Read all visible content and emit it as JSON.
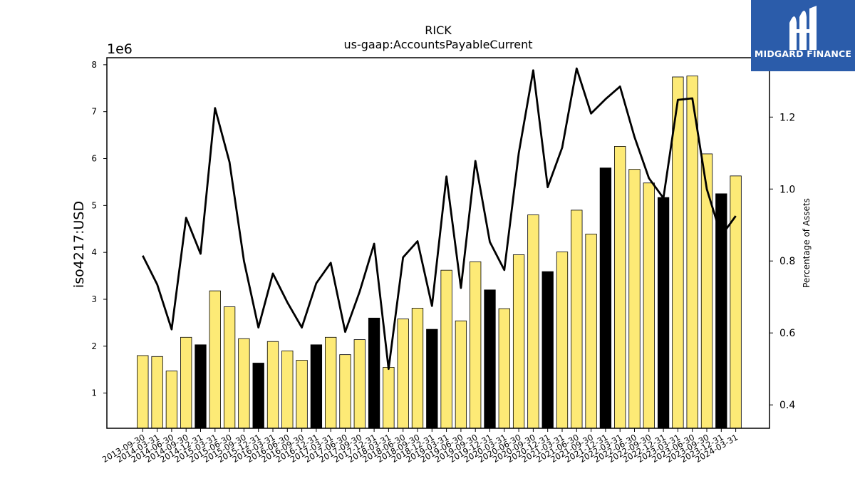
{
  "chart_data": {
    "type": "bar",
    "title": "RICK",
    "subtitle": "us-gaap:AccountsPayableCurrent",
    "ylabel": "iso4217:USD",
    "y_scale_label": "1e6",
    "y2label": "Percentage of Assets",
    "ylim": [
      0.25,
      8.15
    ],
    "y2lim": [
      0.335,
      1.365
    ],
    "yticks": [
      "1",
      "2",
      "3",
      "4",
      "5",
      "6",
      "7",
      "8"
    ],
    "y2ticks": [
      "0.4",
      "0.6",
      "0.8",
      "1.0",
      "1.2"
    ],
    "categories": [
      "2013-09-30",
      "2014-03-31",
      "2014-06-30",
      "2014-09-30",
      "2014-12-31",
      "2015-03-31",
      "2015-06-30",
      "2015-09-30",
      "2015-12-31",
      "2016-03-31",
      "2016-06-30",
      "2016-09-30",
      "2016-12-31",
      "2017-03-31",
      "2017-06-30",
      "2017-09-30",
      "2017-12-31",
      "2018-03-31",
      "2018-06-30",
      "2018-09-30",
      "2018-12-31",
      "2019-03-31",
      "2019-06-30",
      "2019-09-30",
      "2019-12-31",
      "2020-03-31",
      "2020-06-30",
      "2020-09-30",
      "2020-12-31",
      "2021-03-31",
      "2021-06-30",
      "2021-09-30",
      "2021-12-31",
      "2022-03-31",
      "2022-06-30",
      "2022-09-30",
      "2022-12-31",
      "2023-03-31",
      "2023-06-30",
      "2023-09-30",
      "2023-12-31",
      "2024-03-31"
    ],
    "series": [
      {
        "values": [
          1.8,
          1.78,
          1.47,
          2.19,
          2.03,
          3.18,
          2.84,
          2.16,
          1.64,
          2.1,
          1.9,
          1.7,
          2.03,
          2.19,
          1.82,
          2.14,
          2.6,
          1.55,
          2.58,
          2.81,
          2.36,
          3.62,
          2.54,
          3.8,
          3.2,
          2.8,
          3.95,
          4.8,
          3.59,
          4.01,
          4.9,
          4.39,
          5.8,
          6.26,
          5.77,
          5.48,
          5.17,
          7.74,
          7.76,
          6.1,
          5.25,
          5.63
        ],
        "highlight": [
          false,
          false,
          false,
          false,
          true,
          false,
          false,
          false,
          true,
          false,
          false,
          false,
          true,
          false,
          false,
          false,
          true,
          false,
          false,
          false,
          true,
          false,
          false,
          false,
          true,
          false,
          false,
          false,
          true,
          false,
          false,
          false,
          true,
          false,
          false,
          false,
          true,
          false,
          false,
          false,
          true,
          false
        ]
      },
      {
        "values": [
          0.815,
          0.735,
          0.61,
          0.92,
          0.82,
          1.225,
          1.075,
          0.8,
          0.615,
          0.765,
          0.685,
          0.615,
          0.738,
          0.795,
          0.603,
          0.715,
          0.848,
          0.5,
          0.81,
          0.855,
          0.675,
          1.035,
          0.725,
          1.078,
          0.853,
          0.775,
          1.1,
          1.33,
          1.005,
          1.115,
          1.335,
          1.21,
          1.25,
          1.285,
          1.145,
          1.03,
          0.975,
          1.248,
          1.252,
          1.0,
          0.87,
          0.925
        ]
      }
    ],
    "colors": {
      "bar": "#fdea76",
      "bar_highlight": "#000000",
      "bar_edge": "#000000",
      "line": "#000000"
    },
    "legend": "none",
    "grid": false
  },
  "logo": {
    "text": "MIDGARD FINANCE",
    "background": "#2b5caa"
  }
}
